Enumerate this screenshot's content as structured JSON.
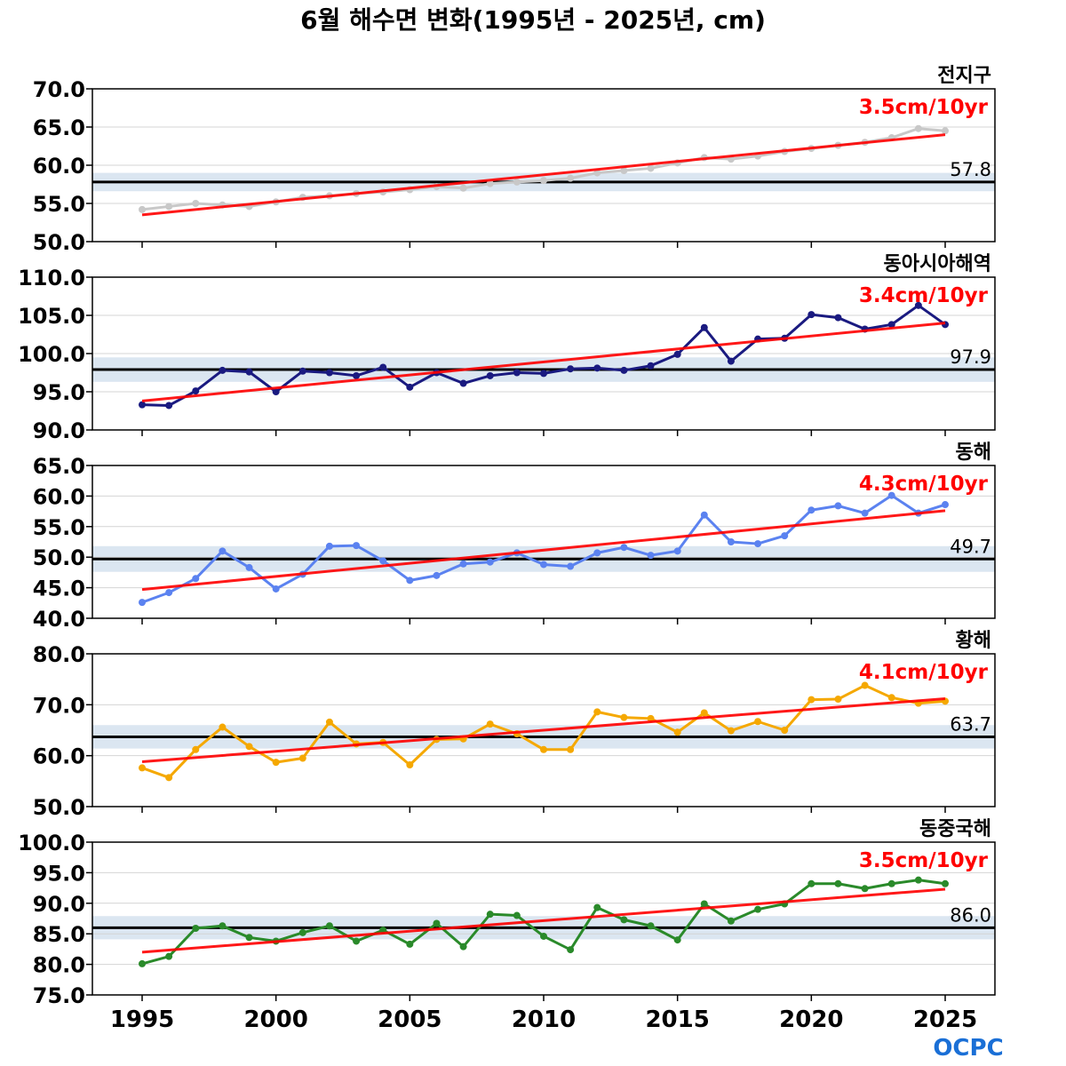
{
  "title": "6월 해수면 변화(1995년 - 2025년, cm)",
  "logo": "OCPC",
  "colors": {
    "trend": "#ff0000",
    "mean_line": "#000000",
    "band": "#dbe6f1"
  },
  "chart_data": [
    {
      "type": "line",
      "region": "전지구",
      "trend_label": "3.5cm/10yr",
      "mean": 57.8,
      "mean_label": "57.8",
      "band": [
        56.6,
        59.0
      ],
      "ylim": [
        50,
        70
      ],
      "yticks": [
        "50.0",
        "55.0",
        "60.0",
        "65.0",
        "70.0"
      ],
      "color": "#c8c8c8",
      "trend": [
        53.5,
        64.0
      ],
      "x": [
        1995,
        1996,
        1997,
        1998,
        1999,
        2000,
        2001,
        2002,
        2003,
        2004,
        2005,
        2006,
        2007,
        2008,
        2009,
        2010,
        2011,
        2012,
        2013,
        2014,
        2015,
        2016,
        2017,
        2018,
        2019,
        2020,
        2021,
        2022,
        2023,
        2024,
        2025
      ],
      "values": [
        54.2,
        54.6,
        55.0,
        54.8,
        54.6,
        55.2,
        55.8,
        56.0,
        56.3,
        56.5,
        56.8,
        57.2,
        57.0,
        57.6,
        57.8,
        58.0,
        58.3,
        59.0,
        59.3,
        59.6,
        60.3,
        61.0,
        60.8,
        61.2,
        61.8,
        62.2,
        62.6,
        63.0,
        63.6,
        64.8,
        64.5
      ]
    },
    {
      "type": "line",
      "region": "동아시아해역",
      "trend_label": "3.4cm/10yr",
      "mean": 97.9,
      "mean_label": "97.9",
      "band": [
        96.3,
        99.5
      ],
      "ylim": [
        90,
        110
      ],
      "yticks": [
        "90.0",
        "95.0",
        "100.0",
        "105.0",
        "110.0"
      ],
      "color": "#1a1a80",
      "trend": [
        93.8,
        104.0
      ],
      "x": [
        1995,
        1996,
        1997,
        1998,
        1999,
        2000,
        2001,
        2002,
        2003,
        2004,
        2005,
        2006,
        2007,
        2008,
        2009,
        2010,
        2011,
        2012,
        2013,
        2014,
        2015,
        2016,
        2017,
        2018,
        2019,
        2020,
        2021,
        2022,
        2023,
        2024,
        2025
      ],
      "values": [
        93.3,
        93.2,
        95.1,
        97.8,
        97.6,
        95.0,
        97.7,
        97.5,
        97.1,
        98.2,
        95.6,
        97.5,
        96.1,
        97.1,
        97.5,
        97.4,
        98.0,
        98.1,
        97.8,
        98.4,
        99.9,
        103.4,
        99.0,
        101.9,
        102.0,
        105.1,
        104.7,
        103.2,
        103.8,
        106.3,
        103.8
      ]
    },
    {
      "type": "line",
      "region": "동해",
      "trend_label": "4.3cm/10yr",
      "mean": 49.7,
      "mean_label": "49.7",
      "band": [
        47.6,
        51.8
      ],
      "ylim": [
        40,
        65
      ],
      "yticks": [
        "40.0",
        "45.0",
        "50.0",
        "55.0",
        "60.0",
        "65.0"
      ],
      "color": "#5b82f0",
      "trend": [
        44.7,
        57.6
      ],
      "x": [
        1995,
        1996,
        1997,
        1998,
        1999,
        2000,
        2001,
        2002,
        2003,
        2004,
        2005,
        2006,
        2007,
        2008,
        2009,
        2010,
        2011,
        2012,
        2013,
        2014,
        2015,
        2016,
        2017,
        2018,
        2019,
        2020,
        2021,
        2022,
        2023,
        2024,
        2025
      ],
      "values": [
        42.6,
        44.2,
        46.5,
        51.0,
        48.3,
        44.8,
        47.2,
        51.8,
        51.9,
        49.4,
        46.2,
        47.0,
        48.9,
        49.2,
        50.7,
        48.8,
        48.5,
        50.7,
        51.6,
        50.3,
        51.0,
        56.9,
        52.5,
        52.2,
        53.5,
        57.7,
        58.4,
        57.2,
        60.1,
        57.2,
        58.6
      ]
    },
    {
      "type": "line",
      "region": "황해",
      "trend_label": "4.1cm/10yr",
      "mean": 63.7,
      "mean_label": "63.7",
      "band": [
        61.4,
        66.0
      ],
      "ylim": [
        50,
        80
      ],
      "yticks": [
        "50.0",
        "60.0",
        "70.0",
        "80.0"
      ],
      "color": "#f5a800",
      "trend": [
        58.8,
        71.2
      ],
      "x": [
        1995,
        1996,
        1997,
        1998,
        1999,
        2000,
        2001,
        2002,
        2003,
        2004,
        2005,
        2006,
        2007,
        2008,
        2009,
        2010,
        2011,
        2012,
        2013,
        2014,
        2015,
        2016,
        2017,
        2018,
        2019,
        2020,
        2021,
        2022,
        2023,
        2024,
        2025
      ],
      "values": [
        57.6,
        55.7,
        61.2,
        65.6,
        61.8,
        58.7,
        59.5,
        66.6,
        62.3,
        62.6,
        58.2,
        63.2,
        63.3,
        66.2,
        64.3,
        61.2,
        61.2,
        68.6,
        67.5,
        67.3,
        64.6,
        68.4,
        64.9,
        66.7,
        65.0,
        71.0,
        71.1,
        73.8,
        71.4,
        70.3,
        70.7
      ]
    },
    {
      "type": "line",
      "region": "동중국해",
      "trend_label": "3.5cm/10yr",
      "mean": 86.0,
      "mean_label": "86.0",
      "band": [
        84.1,
        87.9
      ],
      "ylim": [
        75,
        100
      ],
      "yticks": [
        "75.0",
        "80.0",
        "85.0",
        "90.0",
        "95.0",
        "100.0"
      ],
      "color": "#2a8a2a",
      "trend": [
        82.0,
        92.3
      ],
      "x": [
        1995,
        1996,
        1997,
        1998,
        1999,
        2000,
        2001,
        2002,
        2003,
        2004,
        2005,
        2006,
        2007,
        2008,
        2009,
        2010,
        2011,
        2012,
        2013,
        2014,
        2015,
        2016,
        2017,
        2018,
        2019,
        2020,
        2021,
        2022,
        2023,
        2024,
        2025
      ],
      "values": [
        80.1,
        81.3,
        85.9,
        86.3,
        84.4,
        83.8,
        85.2,
        86.3,
        83.8,
        85.6,
        83.3,
        86.7,
        82.9,
        88.2,
        88.0,
        84.6,
        82.4,
        89.3,
        87.3,
        86.3,
        84.0,
        89.9,
        87.1,
        89.0,
        89.9,
        93.2,
        93.2,
        92.4,
        93.2,
        93.8,
        93.2
      ]
    }
  ],
  "xticks": [
    "1995",
    "2000",
    "2005",
    "2010",
    "2015",
    "2020",
    "2025"
  ]
}
